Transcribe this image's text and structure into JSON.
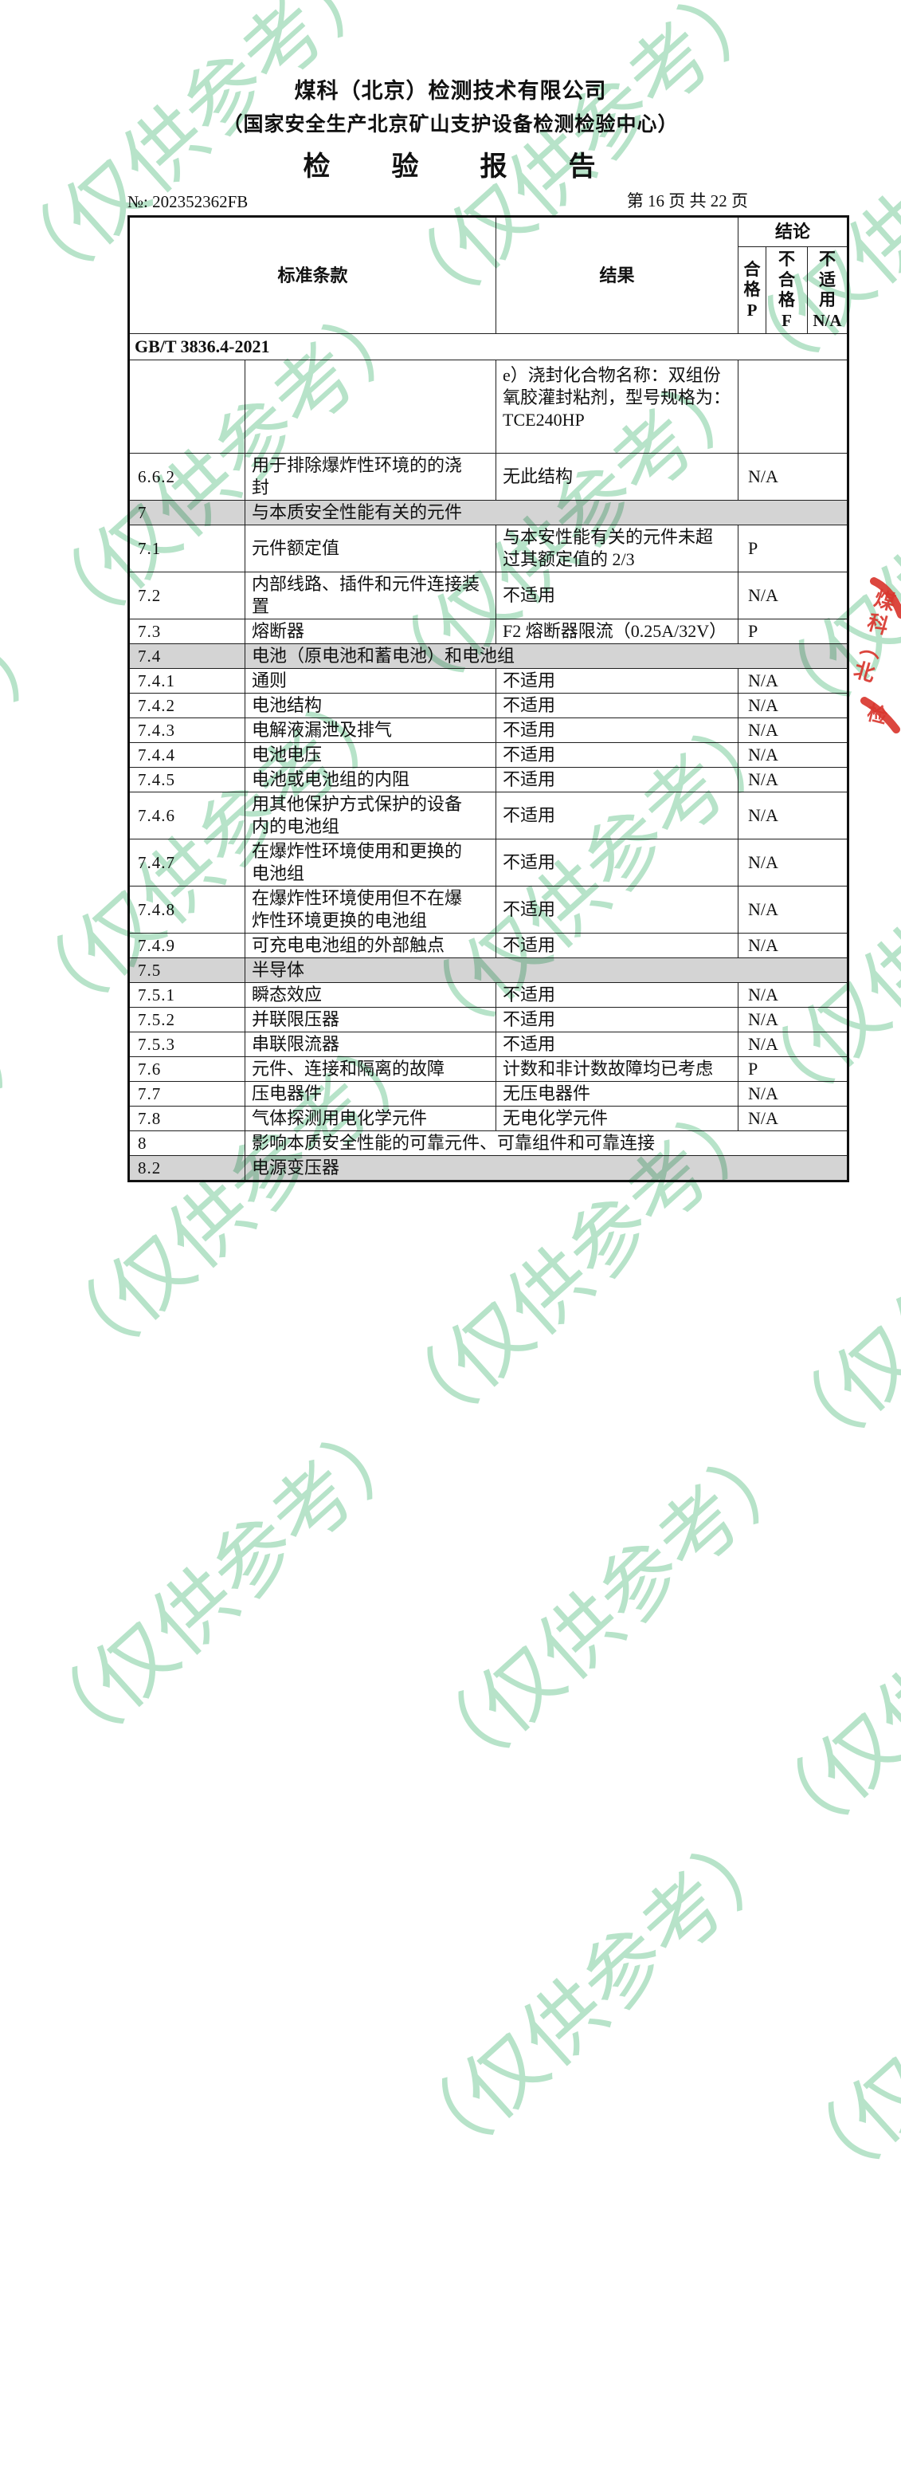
{
  "watermark": {
    "text": "（仅供参考）",
    "color": "#b7e3c9"
  },
  "stamp": {
    "color": "#d9372f",
    "arc_text": "煤科（北",
    "char": "检"
  },
  "header": {
    "company": "煤科（北京）检测技术有限公司",
    "center": "（国家安全生产北京矿山支护设备检测检验中心）",
    "title": "检　　验　　报　　告",
    "report_no": "№: 202352362FB",
    "page_info": "第 16 页 共 22 页"
  },
  "table": {
    "header": {
      "clause": "标准条款",
      "result": "结果",
      "conclusion": "结论",
      "pass": "合\n格\nP",
      "fail": "不\n合\n格\nF",
      "na": "不\n适\n用\nN/A"
    },
    "rows": [
      {
        "type": "standard",
        "text": "GB/T 3836.4-2021"
      },
      {
        "type": "data",
        "no": "",
        "clause": "",
        "result": "e）浇封化合物名称：双组份\n氧胶灌封粘剂，型号规格为：\nTCE240HP",
        "conclusion": ""
      },
      {
        "type": "data",
        "no": "6.6.2",
        "clause": "用于排除爆炸性环境的的浇\n封",
        "result": "无此结构",
        "conclusion": "N/A"
      },
      {
        "type": "section",
        "no": "7",
        "title": "与本质安全性能有关的元件",
        "gray": true
      },
      {
        "type": "data",
        "no": "7.1",
        "clause": "元件额定值",
        "result": "与本安性能有关的元件未超\n过其额定值的 2/3",
        "conclusion": "P"
      },
      {
        "type": "data",
        "no": "7.2",
        "clause": "内部线路、插件和元件连接装\n置",
        "result": "不适用",
        "conclusion": "N/A"
      },
      {
        "type": "data",
        "no": "7.3",
        "clause": "熔断器",
        "result": "F2 熔断器限流（0.25A/32V）",
        "conclusion": "P"
      },
      {
        "type": "section",
        "no": "7.4",
        "title": "电池（原电池和蓄电池）和电池组",
        "gray": true
      },
      {
        "type": "data",
        "no": "7.4.1",
        "clause": "通则",
        "result": "不适用",
        "conclusion": "N/A"
      },
      {
        "type": "data",
        "no": "7.4.2",
        "clause": "电池结构",
        "result": "不适用",
        "conclusion": "N/A"
      },
      {
        "type": "data",
        "no": "7.4.3",
        "clause": "电解液漏泄及排气",
        "result": "不适用",
        "conclusion": "N/A"
      },
      {
        "type": "data",
        "no": "7.4.4",
        "clause": "电池电压",
        "result": "不适用",
        "conclusion": "N/A"
      },
      {
        "type": "data",
        "no": "7.4.5",
        "clause": "电池或电池组的内阻",
        "result": "不适用",
        "conclusion": "N/A"
      },
      {
        "type": "data",
        "no": "7.4.6",
        "clause": "用其他保护方式保护的设备\n内的电池组",
        "result": "不适用",
        "conclusion": "N/A"
      },
      {
        "type": "data",
        "no": "7.4.7",
        "clause": "在爆炸性环境使用和更换的\n电池组",
        "result": "不适用",
        "conclusion": "N/A"
      },
      {
        "type": "data",
        "no": "7.4.8",
        "clause": "在爆炸性环境使用但不在爆\n炸性环境更换的电池组",
        "result": "不适用",
        "conclusion": "N/A"
      },
      {
        "type": "data",
        "no": "7.4.9",
        "clause": "可充电电池组的外部触点",
        "result": "不适用",
        "conclusion": "N/A"
      },
      {
        "type": "section",
        "no": "7.5",
        "title": "半导体",
        "gray": true
      },
      {
        "type": "data",
        "no": "7.5.1",
        "clause": "瞬态效应",
        "result": "不适用",
        "conclusion": "N/A"
      },
      {
        "type": "data",
        "no": "7.5.2",
        "clause": "并联限压器",
        "result": "不适用",
        "conclusion": "N/A"
      },
      {
        "type": "data",
        "no": "7.5.3",
        "clause": "串联限流器",
        "result": "不适用",
        "conclusion": "N/A"
      },
      {
        "type": "data",
        "no": "7.6",
        "clause": "元件、连接和隔离的故障",
        "result": "计数和非计数故障均已考虑",
        "conclusion": "P"
      },
      {
        "type": "data",
        "no": "7.7",
        "clause": "压电器件",
        "result": "无压电器件",
        "conclusion": "N/A"
      },
      {
        "type": "data",
        "no": "7.8",
        "clause": "气体探测用电化学元件",
        "result": "无电化学元件",
        "conclusion": "N/A"
      },
      {
        "type": "section",
        "no": "8",
        "title": "影响本质安全性能的可靠元件、可靠组件和可靠连接",
        "gray": false
      },
      {
        "type": "section",
        "no": "8.2",
        "title": "电源变压器",
        "gray": true
      }
    ]
  }
}
